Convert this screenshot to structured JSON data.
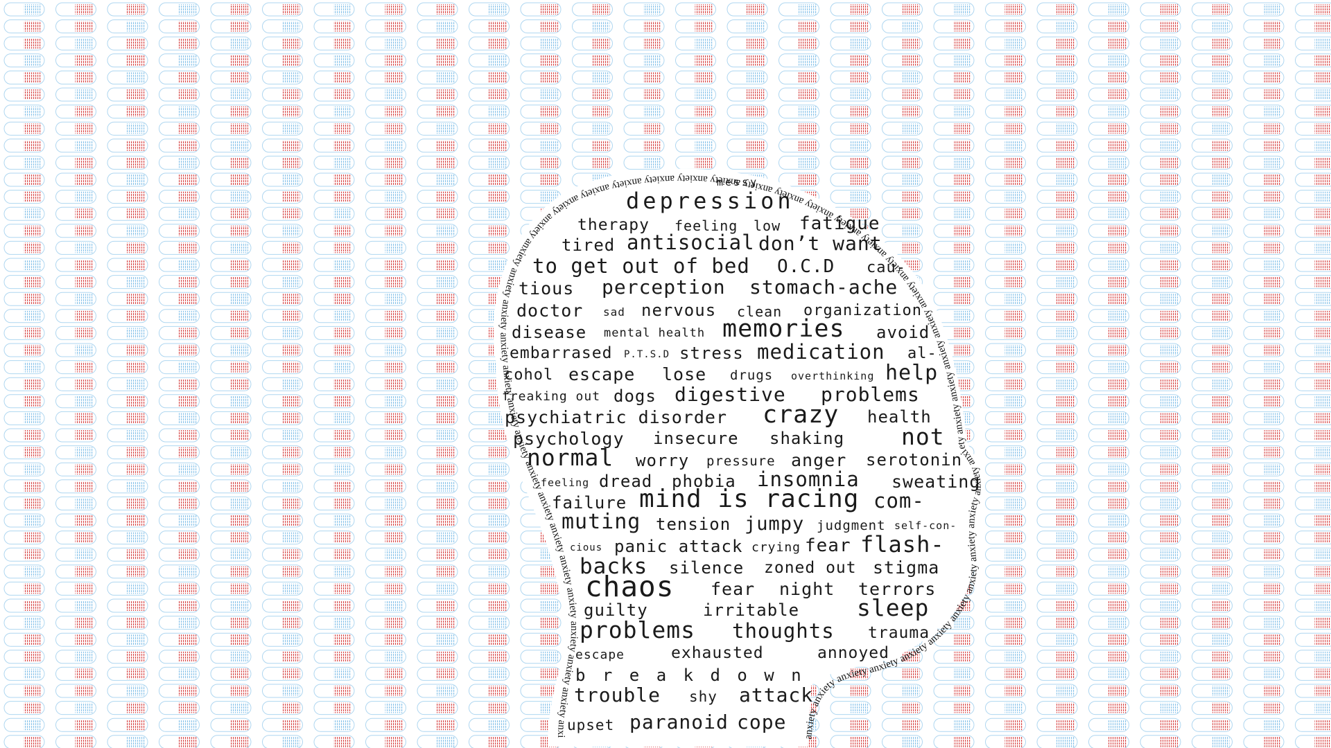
{
  "colors": {
    "pill_red": "#d94c4c",
    "pill_blue": "#8cc4ea",
    "text": "#1a1a1a",
    "background": "#ffffff"
  },
  "ring_word": "anxiety",
  "words": {
    "messy": "messy",
    "depression": "depression",
    "therapy": "therapy",
    "feeling_low": "feeling",
    "low": "low",
    "fatigue": "fatigue",
    "tired": "tired",
    "antisocial": "antisocial",
    "dont_want": "don’t want",
    "to_get_out_of_bed": "to get out of bed",
    "ocd": "O.C.D",
    "cau": "cau-",
    "tious": "tious",
    "perception": "perception",
    "stomach_ache": "stomach-ache",
    "doctor": "doctor",
    "sad": "sad",
    "nervous": "nervous",
    "clean": "clean",
    "organization": "organization",
    "disease": "disease",
    "mental_health": "mental health",
    "memories": "memories",
    "avoid": "avoid",
    "embarrased": "embarrased",
    "ptsd": "P.T.S.D",
    "stress": "stress",
    "medication": "medication",
    "al": "al-",
    "cohol": "cohol",
    "escape": "escape",
    "lose": "lose",
    "drugs": "drugs",
    "overthinking": "overthinking",
    "help": "help",
    "freaking_out": "freaking out",
    "dogs": "dogs",
    "digestive": "digestive",
    "problems_1": "problems",
    "psychiatric_disorder": "psychiatric disorder",
    "crazy": "crazy",
    "health": "health",
    "psychology": "psychology",
    "insecure": "insecure",
    "shaking": "shaking",
    "not": "not",
    "normal": "normal",
    "worry": "worry",
    "pressure": "pressure",
    "anger": "anger",
    "serotonin": "serotonin",
    "feeling_2": "feeling",
    "dread": "dread",
    "phobia": "phobia",
    "insomnia": "insomnia",
    "sweating": "sweating",
    "failure": "failure",
    "mind_is_racing": "mind is racing",
    "com": "com-",
    "muting": "muting",
    "tension": "tension",
    "jumpy": "jumpy",
    "judgment": "judgment",
    "self_con": "self-con-",
    "cious": "cious",
    "panic_attack": "panic attack",
    "crying": "crying",
    "fear_1": "fear",
    "flash": "flash-",
    "backs": "backs",
    "silence": "silence",
    "zoned_out": "zoned out",
    "stigma": "stigma",
    "chaos": "chaos",
    "fear_2": "fear",
    "night": "night",
    "terrors": "terrors",
    "guilty": "guilty",
    "irritable": "irritable",
    "sleep": "sleep",
    "problems_2": "problems",
    "thoughts": "thoughts",
    "trauma": "trauma",
    "escape_2": "escape",
    "exhausted": "exhausted",
    "annoyed": "annoyed",
    "breakdown": "b r e a k d o w n",
    "trouble": "trouble",
    "shy": "shy",
    "attack": "attack",
    "upset": "upset",
    "paranoid": "paranoid",
    "cope": "cope"
  }
}
